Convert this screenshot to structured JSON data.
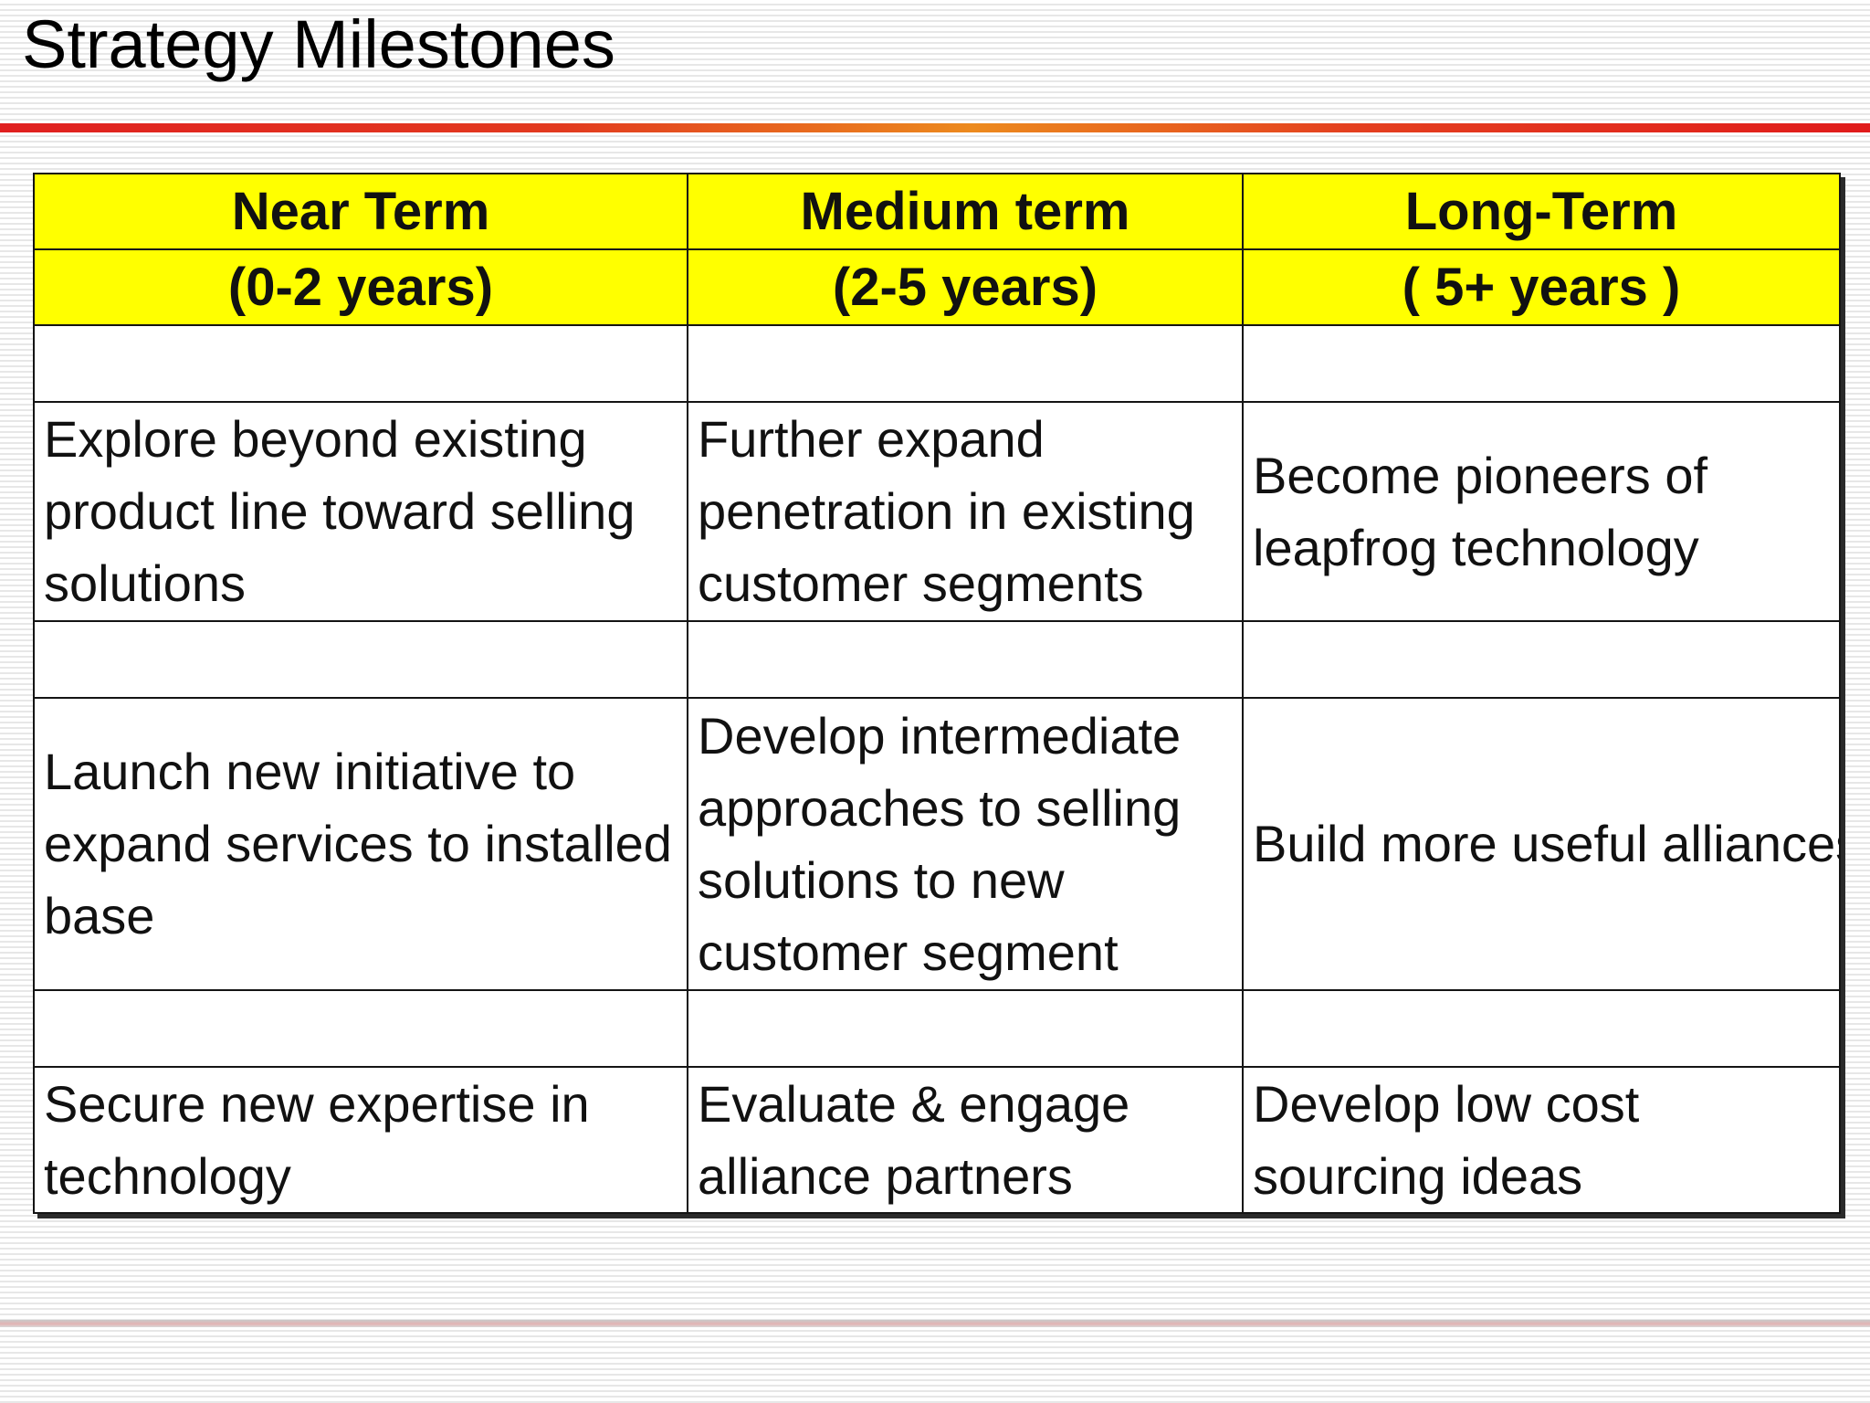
{
  "slide": {
    "title": "Strategy Milestones"
  },
  "colors": {
    "header_fill": "#ffff00",
    "title_rule_red": "#e02020",
    "title_rule_orange": "#ec8a1e",
    "border": "#141414"
  },
  "table": {
    "columns": [
      {
        "name": "Near Term",
        "range": "(0-2 years)"
      },
      {
        "name": "Medium term",
        "range": "(2-5 years)"
      },
      {
        "name": "Long-Term",
        "range": "( 5+ years )"
      }
    ],
    "rows": [
      [
        "Explore beyond existing product line toward selling solutions",
        "Further expand penetration in existing customer segments",
        "Become pioneers of leapfrog technology"
      ],
      [
        "Launch new initiative to expand services to installed base",
        "Develop intermediate approaches to selling solutions to new customer segment",
        "Build more useful alliances"
      ],
      [
        "Secure new expertise in technology",
        "Evaluate & engage alliance partners",
        "Develop low cost sourcing ideas"
      ]
    ]
  }
}
